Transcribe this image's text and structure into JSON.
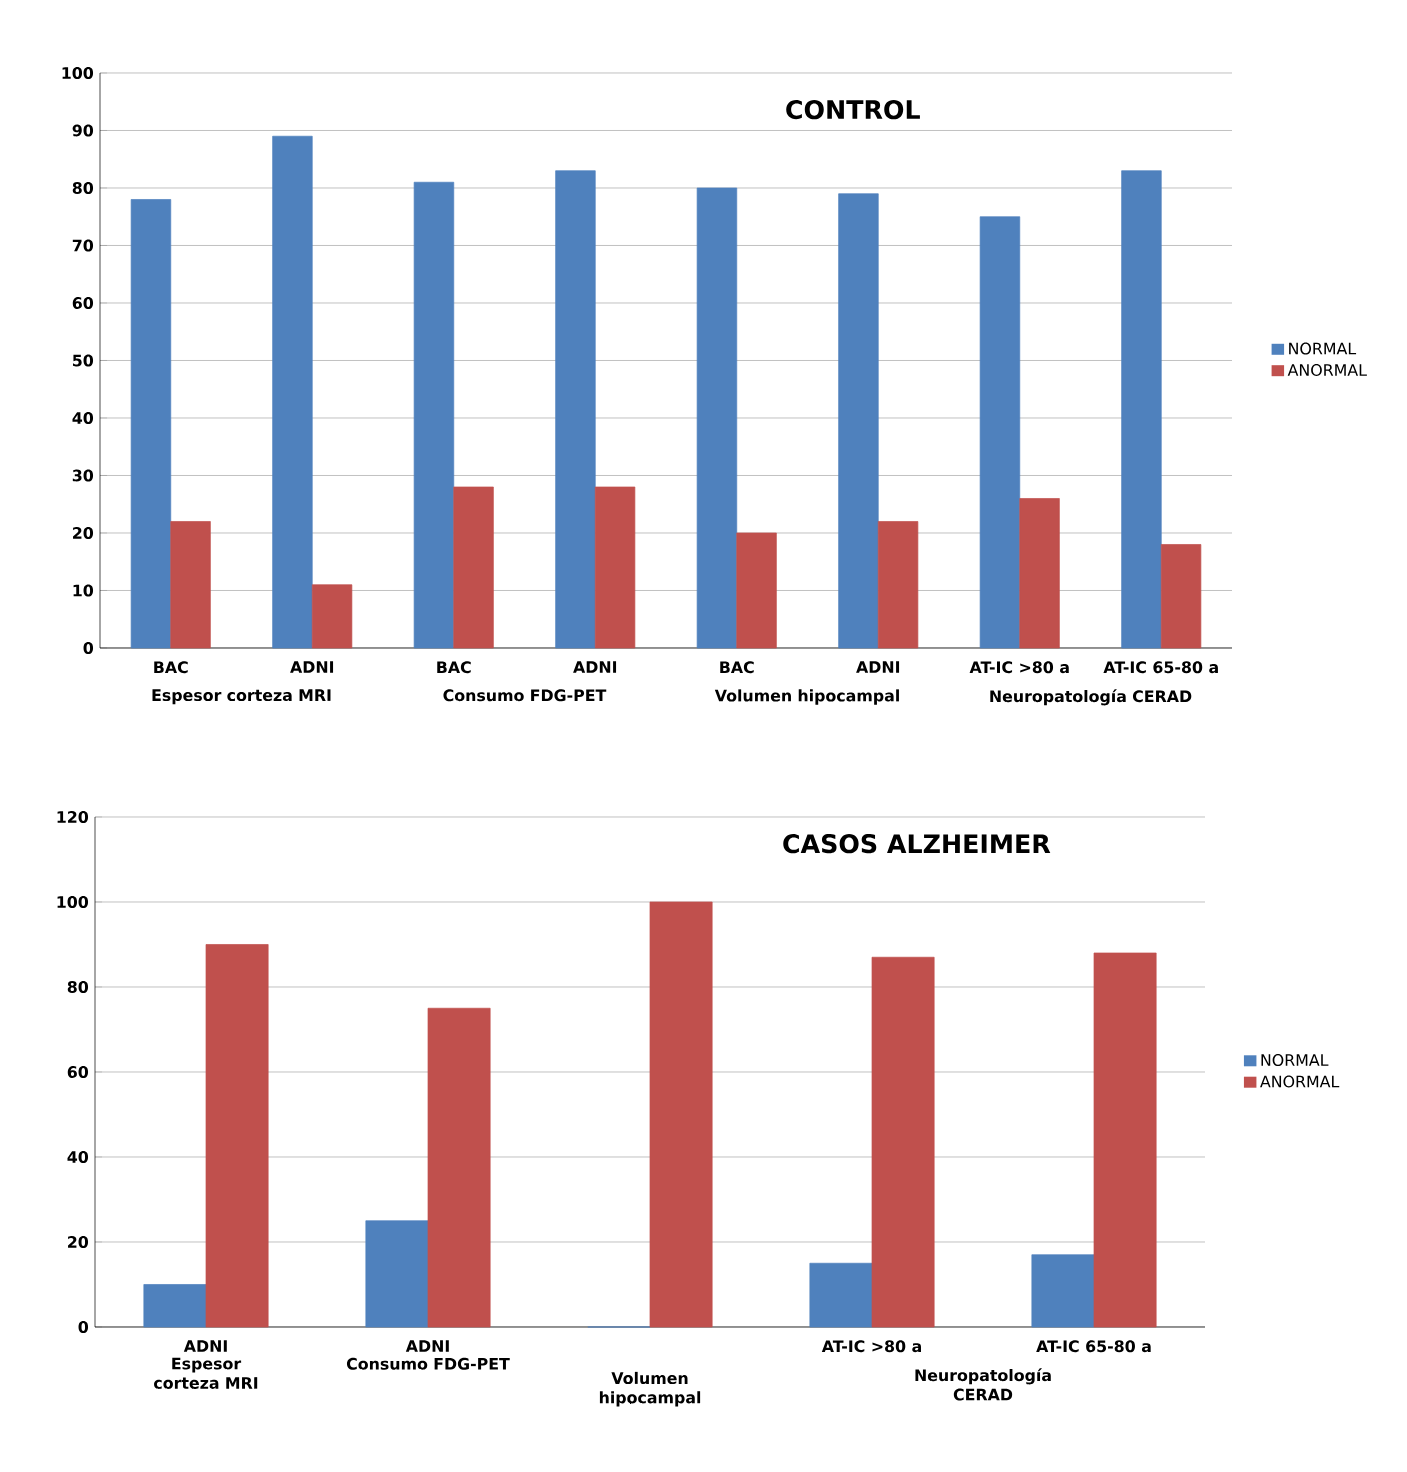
{
  "chart_data": [
    {
      "type": "bar",
      "title": "CONTROL",
      "categories": [
        "BAC",
        "ADNI",
        "BAC",
        "ADNI",
        "BAC",
        "ADNI",
        "AT-IC >80 a",
        "AT-IC 65-80 a"
      ],
      "series": [
        {
          "name": "NORMAL",
          "color": "#4f81bd",
          "values": [
            78,
            89,
            81,
            83,
            80,
            79,
            75,
            83
          ]
        },
        {
          "name": "ANORMAL",
          "color": "#c0504d",
          "values": [
            22,
            11,
            28,
            28,
            20,
            22,
            26,
            18
          ]
        }
      ],
      "ylim": [
        0,
        100
      ],
      "yticks": [
        0,
        10,
        20,
        30,
        40,
        50,
        60,
        70,
        80,
        90,
        100
      ],
      "grid": "y",
      "legend": "right",
      "annotations": [
        "Espesor corteza  MRI",
        "Consumo FDG-PET",
        "Volumen  hipocampal",
        "Neuropatología CERAD"
      ]
    },
    {
      "type": "bar",
      "title": "CASOS ALZHEIMER",
      "categories": [
        "ADNI",
        "ADNI",
        null,
        "AT-IC >80 a",
        "AT-IC 65-80 a"
      ],
      "series": [
        {
          "name": "NORMAL",
          "color": "#4f81bd",
          "values": [
            10,
            25,
            0,
            15,
            17
          ]
        },
        {
          "name": "ANORMAL",
          "color": "#c0504d",
          "values": [
            90,
            75,
            100,
            87,
            88
          ]
        }
      ],
      "ylim": [
        0,
        120
      ],
      "yticks": [
        0,
        20,
        40,
        60,
        80,
        100,
        120
      ],
      "grid": "y",
      "legend": "right",
      "annotations": [
        "Espesor corteza MRI",
        "Consumo FDG-PET",
        "Volumen hipocampal",
        "Neuropatología CERAD"
      ]
    }
  ]
}
